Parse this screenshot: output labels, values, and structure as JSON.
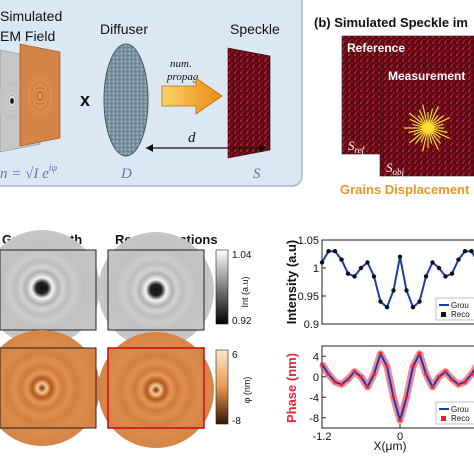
{
  "panel_a": {
    "field_label_line1": "Simulated",
    "field_label_line2": "EM Field",
    "diffuser_label": "Diffuser",
    "times_symbol": "x",
    "arrow_label_line1": "num.",
    "arrow_label_line2": "propag",
    "speckle_label": "Speckle",
    "distance_label": "d",
    "field_formula": "n = √I e",
    "field_formula_exp": "iφ",
    "diffuser_symbol": "D",
    "speckle_symbol": "S",
    "colors": {
      "panel_bg": "#dce7f4",
      "panel_border": "#9fb6d2",
      "symbol_color": "#5a78b8",
      "arrow_fill": "#f2a01e"
    }
  },
  "panel_b": {
    "title": "(b) Simulated Speckle im",
    "reference_label": "Reference",
    "measurement_label": "Measurement",
    "s_ref": "S",
    "s_ref_sub": "ref",
    "s_obj": "S",
    "s_obj_sub": "obj",
    "caption": "Grains Displacement",
    "colors": {
      "caption_color": "#e8962a",
      "speckle_bg": "#5a0a14"
    }
  },
  "reconstruction": {
    "ground_truth_title": "Ground truth",
    "reconstructions_title": "Reconstructions",
    "intensity_colorbar": {
      "label": "Int (a.u)",
      "max": "1.04",
      "min": "0.92"
    },
    "phase_colorbar": {
      "label": "φ  (nm)",
      "max": "6",
      "min": "-8"
    }
  },
  "chart_data": [
    {
      "type": "line",
      "ylabel": "Intensity (a.u)",
      "yticks": [
        "1.05",
        "1",
        "0.95",
        "0.9"
      ],
      "ylim": [
        0.9,
        1.05
      ],
      "xlim": [
        -1.2,
        1.2
      ],
      "x": [
        -1.2,
        -1.1,
        -1.0,
        -0.9,
        -0.8,
        -0.7,
        -0.6,
        -0.5,
        -0.4,
        -0.3,
        -0.2,
        -0.1,
        0.0,
        0.1,
        0.2,
        0.3,
        0.4,
        0.5,
        0.6,
        0.7,
        0.8,
        0.9,
        1.0,
        1.1,
        1.2
      ],
      "legend": [
        "Grou",
        "Reco"
      ],
      "series": [
        {
          "name": "Grou",
          "values": [
            1.01,
            1.03,
            1.03,
            1.015,
            0.99,
            0.985,
            1.0,
            1.01,
            0.985,
            0.94,
            0.93,
            0.96,
            1.02,
            0.96,
            0.93,
            0.94,
            0.985,
            1.01,
            1.0,
            0.985,
            0.99,
            1.015,
            1.03,
            1.03,
            1.01
          ]
        },
        {
          "name": "Reco",
          "values": [
            1.01,
            1.03,
            1.03,
            1.015,
            0.99,
            0.985,
            1.0,
            1.01,
            0.985,
            0.94,
            0.93,
            0.96,
            1.02,
            0.96,
            0.93,
            0.94,
            0.985,
            1.01,
            1.0,
            0.985,
            0.99,
            1.015,
            1.03,
            1.03,
            1.01
          ]
        }
      ],
      "colors": {
        "ground": "#1a3cb0",
        "recon": "#111111"
      }
    },
    {
      "type": "line",
      "ylabel": "Phase (nm)",
      "xlabel": "X(μm)",
      "yticks": [
        "4",
        "0",
        "-4",
        "-8"
      ],
      "ylim": [
        -10,
        6
      ],
      "xlim": [
        -1.2,
        1.2
      ],
      "xticks": [
        "-1.2",
        "0"
      ],
      "x": [
        -1.2,
        -1.1,
        -1.0,
        -0.9,
        -0.8,
        -0.7,
        -0.6,
        -0.5,
        -0.4,
        -0.3,
        -0.2,
        -0.1,
        0.0,
        0.1,
        0.2,
        0.3,
        0.4,
        0.5,
        0.6,
        0.7,
        0.8,
        0.9,
        1.0,
        1.1,
        1.2
      ],
      "legend": [
        "Grou",
        "Reco"
      ],
      "series": [
        {
          "name": "Grou",
          "values": [
            2.5,
            0.5,
            -1.0,
            -1.5,
            -0.5,
            1.0,
            0.0,
            -2.0,
            0.5,
            4.5,
            2.0,
            -4.0,
            -8.5,
            -4.0,
            2.0,
            4.5,
            0.5,
            -2.0,
            0.0,
            1.0,
            -0.5,
            -1.5,
            -1.0,
            0.5,
            2.5
          ]
        },
        {
          "name": "Reco",
          "values": [
            2.5,
            0.5,
            -1.0,
            -1.5,
            -0.5,
            1.0,
            0.0,
            -2.0,
            0.5,
            4.5,
            2.0,
            -4.0,
            -8.5,
            -4.0,
            2.0,
            4.5,
            0.5,
            -2.0,
            0.0,
            1.0,
            -0.5,
            -1.5,
            -1.0,
            0.5,
            2.5
          ]
        }
      ],
      "colors": {
        "ground": "#1a3cb0",
        "recon": "#e8233a",
        "ylabel": "#e8233a"
      }
    }
  ]
}
